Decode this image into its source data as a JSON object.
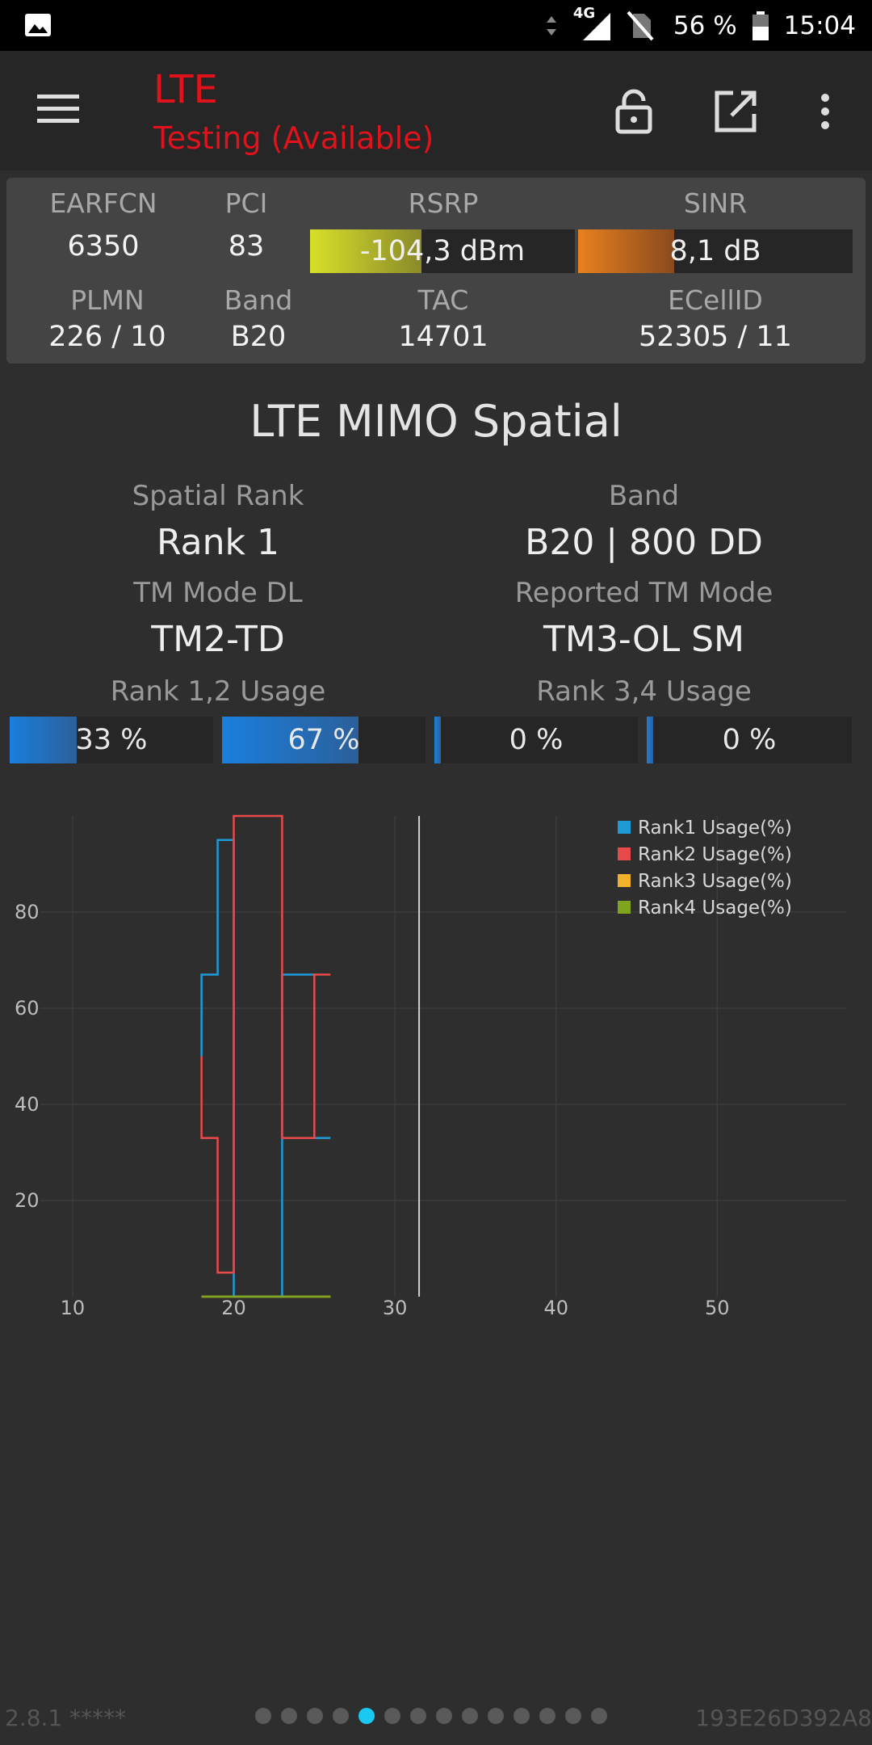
{
  "status_bar": {
    "network": "4G",
    "battery": "56 %",
    "time": "15:04"
  },
  "app_bar": {
    "title": "LTE",
    "subtitle": "Testing (Available)"
  },
  "info": {
    "earfcn_label": "EARFCN",
    "earfcn": "6350",
    "pci_label": "PCI",
    "pci": "83",
    "rsrp_label": "RSRP",
    "rsrp": "-104,3 dBm",
    "rsrp_level": 0.42,
    "sinr_label": "SINR",
    "sinr": "8,1 dB",
    "sinr_level": 0.35,
    "plmn_label": "PLMN",
    "plmn": "226 / 10",
    "band_label": "Band",
    "band": "B20",
    "tac_label": "TAC",
    "tac": "14701",
    "ecellid_label": "ECellID",
    "ecellid": "52305 / 11",
    "colors": {
      "rsrp_start": "#d8e02a",
      "rsrp_end": "#8a8a2a",
      "sinr_start": "#e8801e",
      "sinr_end": "#8a4a1e"
    }
  },
  "mimo": {
    "title": "LTE MIMO Spatial",
    "spatial_rank_label": "Spatial Rank",
    "spatial_rank": "Rank 1",
    "band_label": "Band",
    "band": "B20 | 800 DD",
    "tm_mode_label": "TM Mode DL",
    "tm_mode": "TM2-TD",
    "reported_tm_label": "Reported TM Mode",
    "reported_tm": "TM3-OL SM",
    "rank12_label": "Rank 1,2 Usage",
    "rank34_label": "Rank 3,4 Usage",
    "usage": [
      {
        "text": "33 %",
        "value": 33
      },
      {
        "text": "67 %",
        "value": 67
      },
      {
        "text": "0 %",
        "value": 0
      },
      {
        "text": "0 %",
        "value": 0
      }
    ]
  },
  "chart_data": {
    "type": "line",
    "x_ticks": [
      "10",
      "20",
      "30",
      "40",
      "50"
    ],
    "y_ticks": [
      "20",
      "40",
      "60",
      "80"
    ],
    "xlim": [
      8,
      58
    ],
    "ylim": [
      0,
      100
    ],
    "grid": true,
    "legend_position": "top-right",
    "cursor_x": 31.5,
    "series": [
      {
        "name": "Rank1 Usage(%)",
        "color": "#1e9bd6",
        "points": [
          [
            18,
            50
          ],
          [
            18,
            67
          ],
          [
            19,
            67
          ],
          [
            19,
            95
          ],
          [
            20,
            95
          ],
          [
            20,
            0
          ],
          [
            22,
            0
          ],
          [
            22,
            0
          ],
          [
            23,
            0
          ],
          [
            23,
            67
          ],
          [
            25,
            67
          ],
          [
            25,
            33
          ],
          [
            26,
            33
          ]
        ]
      },
      {
        "name": "Rank2 Usage(%)",
        "color": "#e84a4a",
        "points": [
          [
            18,
            50
          ],
          [
            18,
            33
          ],
          [
            19,
            33
          ],
          [
            19,
            5
          ],
          [
            20,
            5
          ],
          [
            20,
            100
          ],
          [
            23,
            100
          ],
          [
            23,
            33
          ],
          [
            25,
            33
          ],
          [
            25,
            67
          ],
          [
            26,
            67
          ]
        ]
      },
      {
        "name": "Rank3 Usage(%)",
        "color": "#f2b12a",
        "points": [
          [
            18,
            0
          ],
          [
            26,
            0
          ]
        ]
      },
      {
        "name": "Rank4 Usage(%)",
        "color": "#7fa51e",
        "points": [
          [
            18,
            0
          ],
          [
            26,
            0
          ]
        ]
      }
    ]
  },
  "footer": {
    "version": "2.8.1 *****",
    "device_id": "193E26D392A8",
    "pages": 14,
    "active_page": 4
  }
}
